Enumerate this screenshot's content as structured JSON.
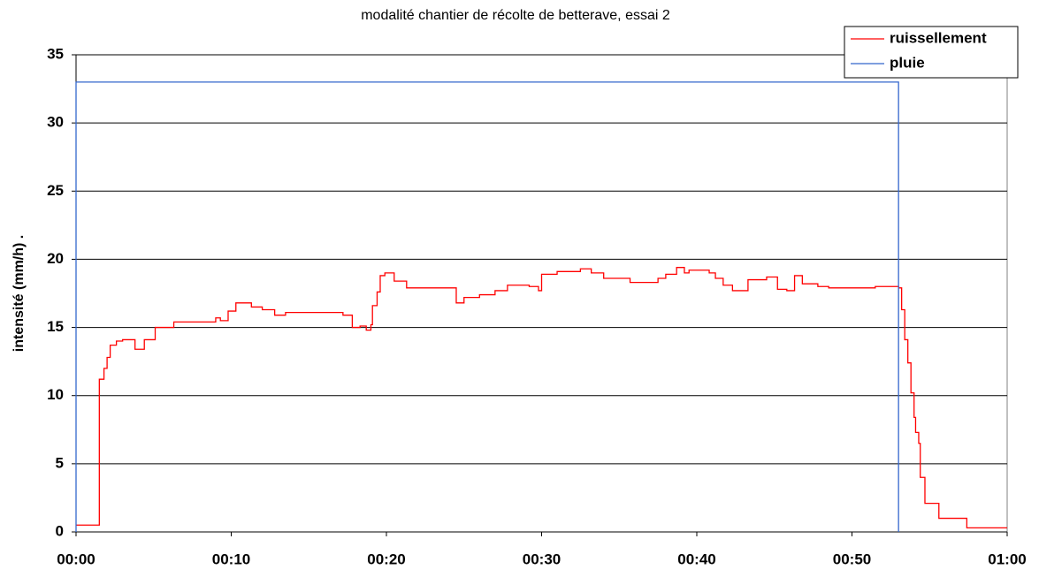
{
  "chart_data": {
    "type": "line",
    "line_style": "step",
    "title": "modalité chantier de récolte de betterave, essai 2",
    "y_label": "intensité (mm/h)  .",
    "xlim": [
      0,
      60
    ],
    "ylim": [
      0,
      35
    ],
    "xticks": [
      {
        "value": 0,
        "label": "00:00"
      },
      {
        "value": 10,
        "label": "00:10"
      },
      {
        "value": 20,
        "label": "00:20"
      },
      {
        "value": 30,
        "label": "00:30"
      },
      {
        "value": 40,
        "label": "00:40"
      },
      {
        "value": 50,
        "label": "00:50"
      },
      {
        "value": 60,
        "label": "01:00"
      }
    ],
    "yticks": [
      0,
      5,
      10,
      15,
      20,
      25,
      30,
      35
    ],
    "grid": true,
    "legend": "upper right",
    "series": [
      {
        "name": "ruissellement",
        "color": "#ff0000",
        "x": [
          0,
          1.5,
          1.8,
          2,
          2.2,
          2.6,
          3,
          3.8,
          4.4,
          5.1,
          6.3,
          9,
          9.3,
          9.8,
          10.3,
          11.3,
          12,
          12.8,
          13.5,
          17.2,
          17.8,
          18.3,
          18.7,
          19,
          19.1,
          19.4,
          19.6,
          19.9,
          20.5,
          21.3,
          24.5,
          25,
          26,
          27,
          27.8,
          29.2,
          29.8,
          30,
          31,
          32.5,
          33.2,
          34,
          35.7,
          37.5,
          38,
          38.7,
          39.2,
          39.5,
          40.8,
          41.2,
          41.7,
          42.3,
          43.3,
          44.5,
          45.2,
          45.8,
          46.3,
          46.8,
          47.8,
          48.5,
          51.5,
          53,
          53.2,
          53.4,
          53.6,
          53.8,
          54,
          54.1,
          54.3,
          54.4,
          54.7,
          55.6,
          57.4,
          60
        ],
        "values": [
          0.5,
          11.2,
          12,
          12.8,
          13.7,
          14,
          14.1,
          13.4,
          14.1,
          15,
          15.4,
          15.7,
          15.5,
          16.2,
          16.8,
          16.5,
          16.3,
          15.9,
          16.1,
          15.9,
          15,
          15.1,
          14.8,
          15.2,
          16.6,
          17.6,
          18.8,
          19,
          18.4,
          17.9,
          16.8,
          17.2,
          17.4,
          17.7,
          18.1,
          18,
          17.7,
          18.9,
          19.1,
          19.3,
          19,
          18.6,
          18.3,
          18.6,
          18.9,
          19.4,
          19,
          19.2,
          19,
          18.6,
          18.1,
          17.7,
          18.5,
          18.7,
          17.8,
          17.7,
          18.8,
          18.2,
          18,
          17.9,
          18,
          17.9,
          16.3,
          14.1,
          12.4,
          10.2,
          8.4,
          7.3,
          6.5,
          4,
          2.1,
          1,
          0.3,
          0.3
        ]
      },
      {
        "name": "pluie",
        "color": "#3366cc",
        "x": [
          0,
          0,
          53
        ],
        "values": [
          0,
          33,
          0
        ]
      }
    ]
  }
}
